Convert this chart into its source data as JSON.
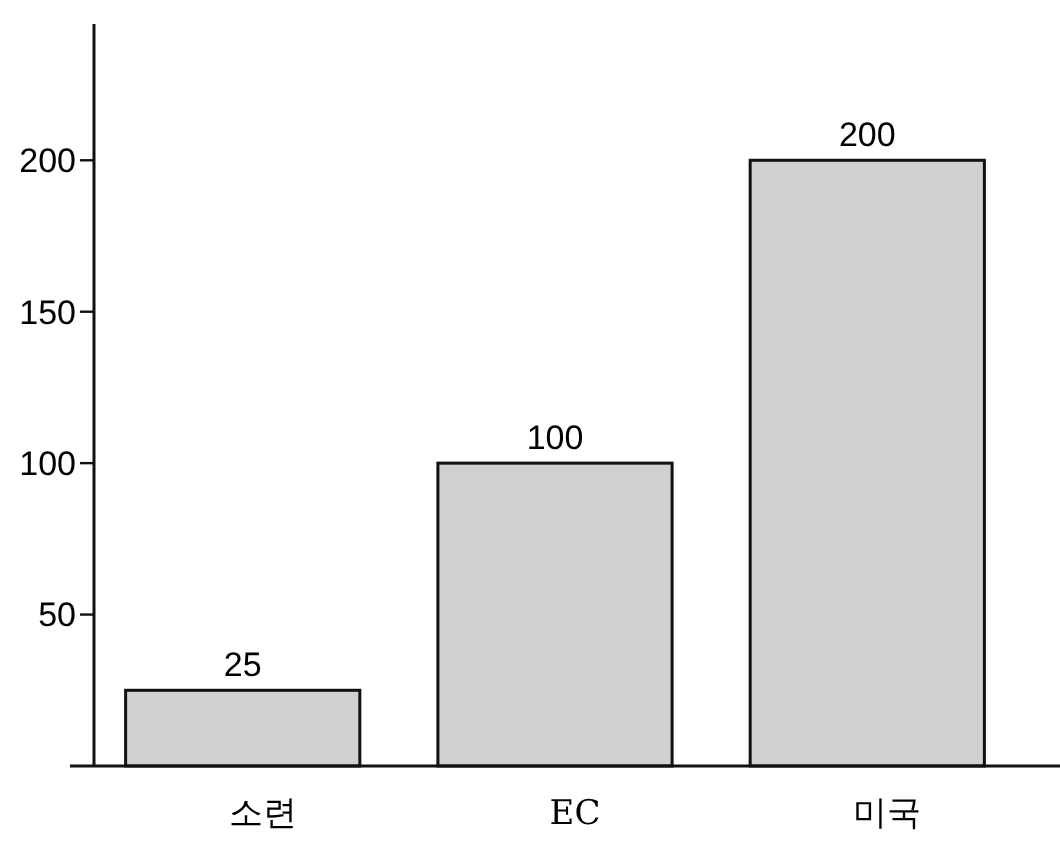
{
  "chart_data": {
    "type": "bar",
    "categories": [
      "소련",
      "EC",
      "미국"
    ],
    "values": [
      25,
      100,
      200
    ],
    "color": "#d0d0d0",
    "ylim": [
      0,
      245
    ],
    "yticks": [
      50,
      100,
      150,
      200
    ],
    "data_labels": true,
    "grid": false
  }
}
